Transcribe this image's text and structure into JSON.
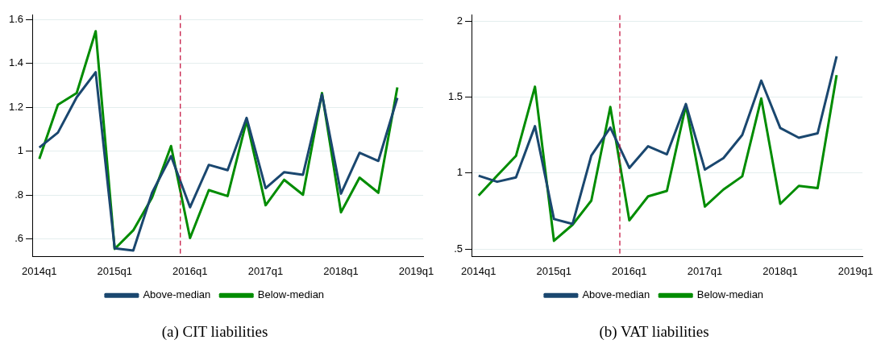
{
  "chart_data": [
    {
      "type": "line",
      "title": "(a) CIT liabilities",
      "x": [
        "2014-01",
        "2014-04",
        "2014-07",
        "2014-10",
        "2015-01",
        "2015-04",
        "2015-07",
        "2015-10",
        "2016-01",
        "2016-04",
        "2016-07",
        "2016-10",
        "2017-01",
        "2017-04",
        "2017-07",
        "2017-10",
        "2018-01",
        "2018-04",
        "2018-07",
        "2018-10"
      ],
      "series": [
        {
          "name": "Above-median",
          "color": "#1a476f",
          "values": [
            1.017,
            1.085,
            1.246,
            1.36,
            0.558,
            0.548,
            0.811,
            0.978,
            0.745,
            0.938,
            0.914,
            1.152,
            0.832,
            0.905,
            0.893,
            1.259,
            0.807,
            0.993,
            0.956,
            1.243
          ]
        },
        {
          "name": "Below-median",
          "color": "#008c00",
          "values": [
            0.965,
            1.212,
            1.265,
            1.547,
            0.555,
            0.64,
            0.789,
            1.024,
            0.605,
            0.823,
            0.796,
            1.139,
            0.754,
            0.87,
            0.802,
            1.265,
            0.722,
            0.88,
            0.811,
            1.291
          ]
        }
      ],
      "xlim": [
        "2013-11-28",
        "2019-02-03"
      ],
      "xticks": [
        {
          "value": "2014-01",
          "label": "2014q1"
        },
        {
          "value": "2015-01",
          "label": "2015q1"
        },
        {
          "value": "2016-01",
          "label": "2016q1"
        },
        {
          "value": "2017-01",
          "label": "2017q1"
        },
        {
          "value": "2018-01",
          "label": "2018q1"
        },
        {
          "value": "2019-01",
          "label": "2019q1"
        }
      ],
      "ylim": [
        0.52,
        1.62
      ],
      "yticks": [
        {
          "value": 0.6,
          "label": ".6"
        },
        {
          "value": 0.8,
          "label": ".8"
        },
        1,
        1.2,
        1.4,
        1.6
      ],
      "ref_lines": [
        {
          "axis": "x",
          "value": "2015-11-15",
          "color": "#c10534",
          "line_style": "dashed"
        }
      ],
      "grid": "y",
      "legend": "bottom",
      "marker": "none"
    },
    {
      "type": "line",
      "title": "(b) VAT liabilities",
      "x": [
        "2014-01",
        "2014-04",
        "2014-07",
        "2014-10",
        "2015-01",
        "2015-04",
        "2015-07",
        "2015-10",
        "2016-01",
        "2016-04",
        "2016-07",
        "2016-10",
        "2017-01",
        "2017-04",
        "2017-07",
        "2017-10",
        "2018-01",
        "2018-04",
        "2018-07",
        "2018-10"
      ],
      "series": [
        {
          "name": "Above-median",
          "color": "#1a476f",
          "values": [
            0.983,
            0.943,
            0.972,
            1.309,
            0.698,
            0.665,
            1.115,
            1.3,
            1.034,
            1.177,
            1.124,
            1.455,
            1.023,
            1.099,
            1.251,
            1.609,
            1.297,
            1.233,
            1.262,
            1.769
          ]
        },
        {
          "name": "Below-median",
          "color": "#008c00",
          "values": [
            0.852,
            0.983,
            1.113,
            1.569,
            0.554,
            0.66,
            0.819,
            1.436,
            0.689,
            0.847,
            0.883,
            1.446,
            0.78,
            0.892,
            0.979,
            1.491,
            0.798,
            0.916,
            0.901,
            1.645
          ]
        }
      ],
      "xlim": [
        "2013-11-28",
        "2019-02-03"
      ],
      "xticks": [
        {
          "value": "2014-01",
          "label": "2014q1"
        },
        {
          "value": "2015-01",
          "label": "2015q1"
        },
        {
          "value": "2016-01",
          "label": "2016q1"
        },
        {
          "value": "2017-01",
          "label": "2017q1"
        },
        {
          "value": "2018-01",
          "label": "2018q1"
        },
        {
          "value": "2019-01",
          "label": "2019q1"
        }
      ],
      "ylim": [
        0.45,
        2.04
      ],
      "yticks": [
        {
          "value": 0.5,
          "label": ".5"
        },
        1,
        1.5,
        2
      ],
      "ref_lines": [
        {
          "axis": "x",
          "value": "2015-11-16",
          "color": "#c10534",
          "line_style": "dashed"
        }
      ],
      "grid": "y",
      "legend": "bottom",
      "marker": "none"
    }
  ]
}
